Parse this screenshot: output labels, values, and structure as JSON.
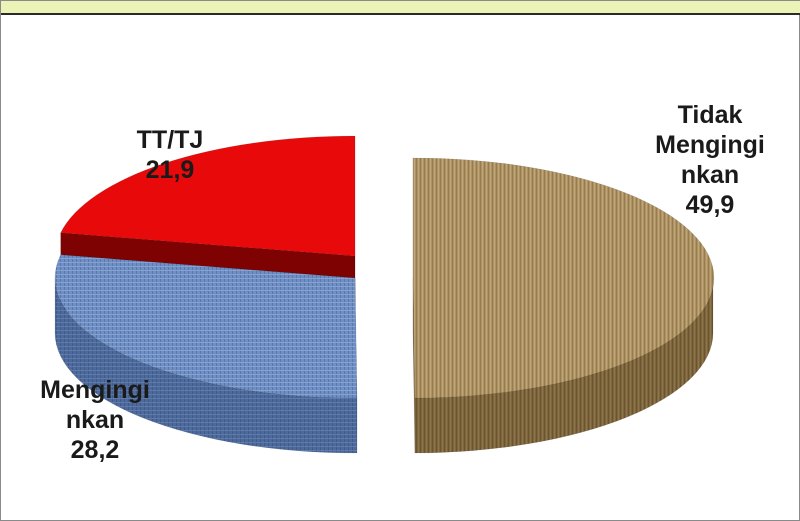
{
  "chart_data": {
    "type": "pie",
    "style": "3d-exploded",
    "title": "",
    "slices": [
      {
        "label_lines": [
          "Tidak",
          "Menginginkan"
        ],
        "display_lines": [
          "Tidak",
          "Mengingi",
          "nkan"
        ],
        "value": 49.9,
        "value_text": "49,9",
        "color": "#a88d5f"
      },
      {
        "label_lines": [
          "Menginginkan"
        ],
        "display_lines": [
          "Mengingi",
          "nkan"
        ],
        "value": 28.2,
        "value_text": "28,2",
        "color": "#6f8fc4"
      },
      {
        "label_lines": [
          "TT/TJ"
        ],
        "display_lines": [
          "TT/TJ"
        ],
        "value": 21.9,
        "value_text": "21,9",
        "color": "#e80a0a"
      }
    ]
  }
}
